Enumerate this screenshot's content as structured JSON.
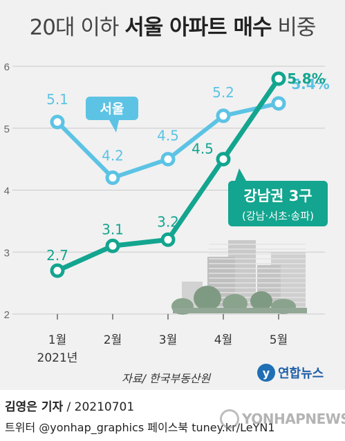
{
  "title": {
    "part1": "20대 이하 ",
    "part2": "서울 아파트 매수",
    "part3": " 비중"
  },
  "chart_data": {
    "type": "line",
    "title": "20대 이하 서울 아파트 매수 비중",
    "categories": [
      "1월",
      "2월",
      "3월",
      "4월",
      "5월"
    ],
    "x_sublabel": "2021년",
    "ylim": [
      2,
      6
    ],
    "yticks": [
      "2",
      "3",
      "4",
      "5",
      "6"
    ],
    "grid": true,
    "series": [
      {
        "name": "서울",
        "values": [
          5.1,
          4.2,
          4.5,
          5.2,
          5.4
        ],
        "value_labels": [
          "5.1",
          "4.2",
          "4.5",
          "5.2",
          "5.4%"
        ],
        "color": "#5cc3e4",
        "callout": "서울"
      },
      {
        "name": "강남권 3구",
        "values": [
          2.7,
          3.1,
          3.2,
          4.5,
          5.8
        ],
        "value_labels": [
          "2.7",
          "3.1",
          "3.2",
          "4.5",
          "5.8%"
        ],
        "color": "#13a58f",
        "callout": "강남권 3구",
        "callout_sub": "(강남·서초·송파)"
      }
    ]
  },
  "source": "자료/ 한국부동산원",
  "logo": {
    "mark": "y",
    "text": "연합뉴스"
  },
  "footer": {
    "reporter_name": "김영은 기자",
    "reporter_date": " / 20210701",
    "social": "트위터 @yonhap_graphics  페이스북 tuney.kr/LeYN1"
  },
  "watermark": "YONHAPNEWS"
}
